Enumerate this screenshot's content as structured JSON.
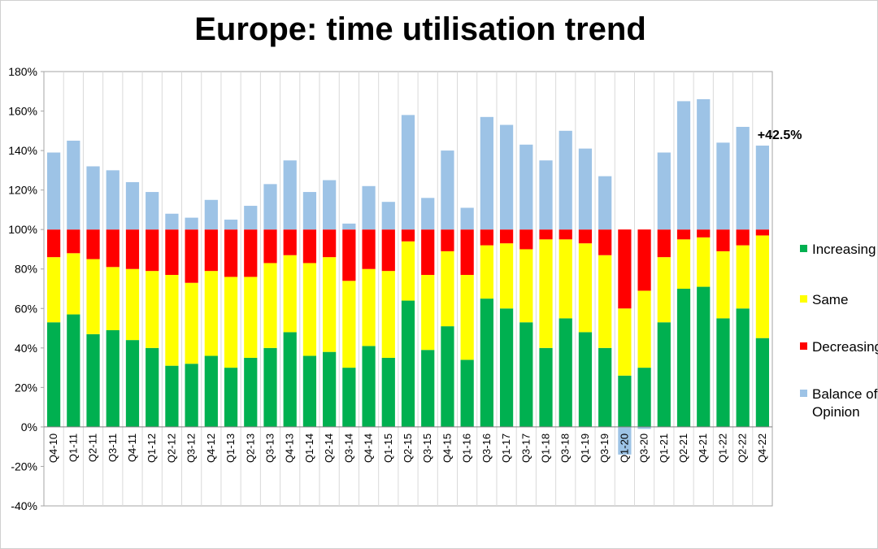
{
  "chart_data": {
    "type": "bar",
    "stacked": true,
    "title": "Europe: time utilisation trend",
    "xlabel": "",
    "ylabel": "",
    "ylim": [
      -0.4,
      1.8
    ],
    "yticks": [
      -0.4,
      -0.2,
      0,
      0.2,
      0.4,
      0.6,
      0.8,
      1.0,
      1.2,
      1.4,
      1.6,
      1.8
    ],
    "ytick_labels": [
      "-40%",
      "-20%",
      "0%",
      "20%",
      "40%",
      "60%",
      "80%",
      "100%",
      "120%",
      "140%",
      "160%",
      "180%"
    ],
    "grid": "vertical",
    "legend_position": "right",
    "categories": [
      "Q4-10",
      "Q1-11",
      "Q2-11",
      "Q3-11",
      "Q4-11",
      "Q1-12",
      "Q2-12",
      "Q3-12",
      "Q4-12",
      "Q1-13",
      "Q2-13",
      "Q3-13",
      "Q4-13",
      "Q1-14",
      "Q2-14",
      "Q3-14",
      "Q4-14",
      "Q1-15",
      "Q2-15",
      "Q3-15",
      "Q4-15",
      "Q1-16",
      "Q3-16",
      "Q1-17",
      "Q3-17",
      "Q1-18",
      "Q3-18",
      "Q1-19",
      "Q3-19",
      "Q1-20",
      "Q3-20",
      "Q1-21",
      "Q2-21",
      "Q4-21",
      "Q1-22",
      "Q2-22",
      "Q4-22"
    ],
    "series": [
      {
        "name": "Increasing",
        "color": "#00b050",
        "values": [
          0.53,
          0.57,
          0.47,
          0.49,
          0.44,
          0.4,
          0.31,
          0.32,
          0.36,
          0.3,
          0.35,
          0.4,
          0.48,
          0.36,
          0.38,
          0.3,
          0.41,
          0.35,
          0.64,
          0.39,
          0.51,
          0.34,
          0.65,
          0.6,
          0.53,
          0.4,
          0.55,
          0.48,
          0.4,
          0.26,
          0.3,
          0.53,
          0.7,
          0.71,
          0.55,
          0.6,
          0.45
        ]
      },
      {
        "name": "Same",
        "color": "#ffff00",
        "values": [
          0.33,
          0.31,
          0.38,
          0.32,
          0.36,
          0.39,
          0.46,
          0.41,
          0.43,
          0.46,
          0.41,
          0.43,
          0.39,
          0.47,
          0.48,
          0.44,
          0.39,
          0.44,
          0.3,
          0.38,
          0.38,
          0.43,
          0.27,
          0.33,
          0.37,
          0.55,
          0.4,
          0.45,
          0.47,
          0.34,
          0.39,
          0.33,
          0.25,
          0.25,
          0.34,
          0.32,
          0.52
        ]
      },
      {
        "name": "Decreasing",
        "color": "#ff0000",
        "values": [
          0.14,
          0.12,
          0.15,
          0.19,
          0.2,
          0.21,
          0.23,
          0.27,
          0.21,
          0.24,
          0.24,
          0.17,
          0.13,
          0.17,
          0.14,
          0.26,
          0.2,
          0.21,
          0.06,
          0.23,
          0.11,
          0.23,
          0.08,
          0.07,
          0.1,
          0.05,
          0.05,
          0.07,
          0.13,
          0.4,
          0.31,
          0.14,
          0.05,
          0.04,
          0.11,
          0.08,
          0.03
        ]
      },
      {
        "name": "Balance of Opinion",
        "color": "#9dc3e6",
        "values": [
          0.39,
          0.45,
          0.32,
          0.3,
          0.24,
          0.19,
          0.08,
          0.06,
          0.15,
          0.05,
          0.12,
          0.23,
          0.35,
          0.19,
          0.25,
          0.03,
          0.22,
          0.14,
          0.58,
          0.16,
          0.4,
          0.11,
          0.57,
          0.53,
          0.43,
          0.35,
          0.5,
          0.41,
          0.27,
          -0.14,
          -0.01,
          0.39,
          0.65,
          0.66,
          0.44,
          0.52,
          0.425
        ]
      }
    ],
    "annotations": [
      {
        "text": "+42.5%",
        "category": "Q4-22"
      }
    ]
  },
  "legend": [
    {
      "lines": [
        "Increasing"
      ],
      "color": "#00b050"
    },
    {
      "lines": [
        "Same"
      ],
      "color": "#ffff00"
    },
    {
      "lines": [
        "Decreasing"
      ],
      "color": "#ff0000"
    },
    {
      "lines": [
        "Balance of",
        "Opinion"
      ],
      "color": "#9dc3e6"
    }
  ]
}
